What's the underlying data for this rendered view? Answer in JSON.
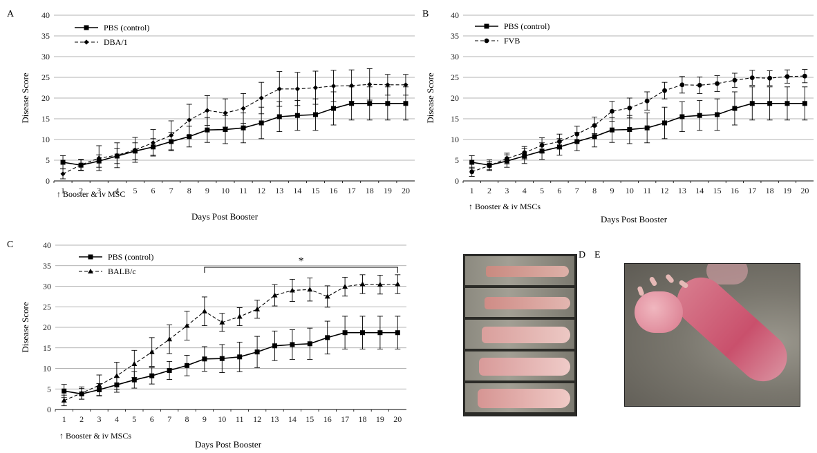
{
  "panels": {
    "A": {
      "label": "A",
      "xlabel": "Days Post Booster",
      "ylabel": "Disease Score",
      "annotation": "↑ Booster & iv MSC",
      "legend": [
        "PBS (control)",
        "DBA/1"
      ]
    },
    "B": {
      "label": "B",
      "xlabel": "Days Post Booster",
      "ylabel": "Disease Score",
      "annotation": "↑ Booster & iv MSCs",
      "legend": [
        "PBS (control)",
        "FVB"
      ]
    },
    "C": {
      "label": "C",
      "xlabel": "Days Post Booster",
      "ylabel": "Disease Score",
      "annotation": "↑ Booster & iv MSCs",
      "legend": [
        "PBS (control)",
        "BALB/c"
      ],
      "significance": "*"
    },
    "D": {
      "label": "D"
    },
    "E": {
      "label": "E"
    }
  },
  "chart_data": [
    {
      "panel": "A",
      "type": "line",
      "x": [
        1,
        2,
        3,
        4,
        5,
        6,
        7,
        8,
        9,
        10,
        11,
        12,
        13,
        14,
        15,
        16,
        17,
        18,
        19,
        20
      ],
      "ylim": [
        0,
        40
      ],
      "yticks": [
        0,
        5,
        10,
        15,
        20,
        25,
        30,
        35,
        40
      ],
      "grid": true,
      "legend_position": "top-left",
      "xlabel": "Days Post Booster",
      "ylabel": "Disease Score",
      "series": [
        {
          "name": "PBS (control)",
          "style": "solid",
          "marker": "square",
          "values": [
            4.5,
            3.8,
            4.8,
            6.0,
            7.2,
            8.2,
            9.5,
            10.7,
            12.3,
            12.4,
            12.8,
            14.0,
            15.5,
            15.8,
            16.0,
            17.5,
            18.7,
            18.7,
            18.7,
            18.7
          ],
          "errors": [
            1.6,
            1.3,
            1.5,
            1.8,
            2.0,
            2.0,
            2.2,
            2.5,
            3.0,
            3.4,
            3.6,
            3.8,
            3.6,
            3.6,
            3.8,
            4.0,
            4.0,
            4.0,
            4.0,
            4.0
          ]
        },
        {
          "name": "DBA/1",
          "style": "dashed",
          "marker": "diamond",
          "values": [
            1.7,
            3.9,
            5.5,
            6.2,
            7.5,
            9.2,
            11.0,
            14.7,
            17.0,
            16.4,
            17.5,
            20.0,
            22.2,
            22.2,
            22.5,
            22.9,
            23.0,
            23.3,
            23.2,
            23.2
          ],
          "errors": [
            1.2,
            1.3,
            3.0,
            3.0,
            3.0,
            3.2,
            3.5,
            3.8,
            3.6,
            3.4,
            3.6,
            3.8,
            4.2,
            4.0,
            4.0,
            3.8,
            3.8,
            3.8,
            2.5,
            2.5
          ]
        }
      ]
    },
    {
      "panel": "B",
      "type": "line",
      "x": [
        1,
        2,
        3,
        4,
        5,
        6,
        7,
        8,
        9,
        10,
        11,
        12,
        13,
        14,
        15,
        16,
        17,
        18,
        19,
        20
      ],
      "ylim": [
        0,
        40
      ],
      "yticks": [
        0,
        5,
        10,
        15,
        20,
        25,
        30,
        35,
        40
      ],
      "grid": true,
      "legend_position": "top-left",
      "xlabel": "Days Post Booster",
      "ylabel": "Disease Score",
      "series": [
        {
          "name": "PBS (control)",
          "style": "solid",
          "marker": "square",
          "values": [
            4.5,
            3.8,
            4.8,
            6.0,
            7.2,
            8.2,
            9.5,
            10.7,
            12.3,
            12.4,
            12.8,
            14.0,
            15.5,
            15.8,
            16.0,
            17.5,
            18.7,
            18.7,
            18.7,
            18.7
          ],
          "errors": [
            1.6,
            1.3,
            1.5,
            1.8,
            2.0,
            2.0,
            2.2,
            2.5,
            3.0,
            3.4,
            3.6,
            3.8,
            3.6,
            3.6,
            3.8,
            4.0,
            4.0,
            4.0,
            4.0,
            4.0
          ]
        },
        {
          "name": "FVB",
          "style": "dashed",
          "marker": "circle",
          "values": [
            2.2,
            3.7,
            5.4,
            6.8,
            8.6,
            9.5,
            11.3,
            13.4,
            16.8,
            17.6,
            19.3,
            21.8,
            23.2,
            23.1,
            23.5,
            24.3,
            24.9,
            24.8,
            25.2,
            25.3
          ],
          "errors": [
            1.1,
            1.0,
            1.3,
            1.5,
            1.8,
            1.8,
            1.9,
            2.0,
            2.4,
            2.4,
            2.2,
            2.0,
            2.0,
            2.0,
            1.9,
            1.7,
            1.8,
            1.8,
            1.6,
            1.6
          ]
        }
      ]
    },
    {
      "panel": "C",
      "type": "line",
      "x": [
        1,
        2,
        3,
        4,
        5,
        6,
        7,
        8,
        9,
        10,
        11,
        12,
        13,
        14,
        15,
        16,
        17,
        18,
        19,
        20
      ],
      "ylim": [
        0,
        40
      ],
      "yticks": [
        0,
        5,
        10,
        15,
        20,
        25,
        30,
        35,
        40
      ],
      "grid": true,
      "legend_position": "top-left",
      "xlabel": "Days Post Booster",
      "ylabel": "Disease Score",
      "significance": {
        "label": "*",
        "from": 9,
        "to": 20
      },
      "series": [
        {
          "name": "PBS (control)",
          "style": "solid",
          "marker": "square",
          "values": [
            4.5,
            3.8,
            4.8,
            6.0,
            7.2,
            8.2,
            9.5,
            10.7,
            12.3,
            12.4,
            12.8,
            14.0,
            15.5,
            15.8,
            16.0,
            17.5,
            18.7,
            18.7,
            18.7,
            18.7
          ],
          "errors": [
            1.6,
            1.3,
            1.5,
            1.8,
            2.0,
            2.0,
            2.2,
            2.5,
            3.0,
            3.4,
            3.6,
            3.8,
            3.6,
            3.6,
            3.8,
            4.0,
            4.0,
            4.0,
            4.0,
            4.0
          ]
        },
        {
          "name": "BALB/c",
          "style": "dashed",
          "marker": "triangle",
          "values": [
            2.2,
            4.0,
            5.9,
            8.2,
            11.1,
            14.0,
            17.1,
            20.4,
            23.9,
            21.2,
            22.6,
            24.4,
            27.8,
            29.0,
            29.2,
            27.5,
            29.9,
            30.5,
            30.4,
            30.5
          ],
          "errors": [
            1.3,
            1.5,
            2.5,
            3.3,
            3.3,
            3.5,
            3.5,
            3.5,
            3.5,
            2.2,
            2.2,
            2.2,
            2.6,
            2.7,
            2.8,
            2.6,
            2.3,
            2.3,
            2.3,
            2.3
          ]
        }
      ]
    }
  ]
}
